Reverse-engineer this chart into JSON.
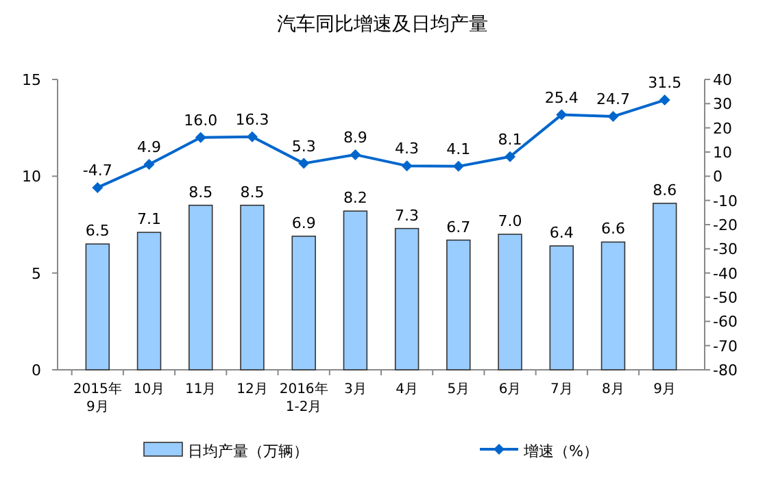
{
  "chart_data": {
    "type": "bar",
    "title": "汽车同比增速及日均产量",
    "categories": [
      "2015年\n9月",
      "10月",
      "11月",
      "12月",
      "2016年\n1-2月",
      "3月",
      "4月",
      "5月",
      "6月",
      "7月",
      "8月",
      "9月"
    ],
    "series": [
      {
        "name": "日均产量（万辆）",
        "color": "#99ccff",
        "values": [
          6.5,
          7.1,
          8.5,
          8.5,
          6.9,
          8.2,
          7.3,
          6.7,
          7.0,
          6.4,
          6.6,
          8.6
        ],
        "value_labels": [
          "6.5",
          "7.1",
          "8.5",
          "8.5",
          "6.9",
          "8.2",
          "7.3",
          "6.7",
          "7.0",
          "6.4",
          "6.6",
          "8.6"
        ]
      },
      {
        "name": "增速（%）",
        "type": "line",
        "axis": "y2",
        "color": "#0066cc",
        "marker": "diamond",
        "values": [
          -4.7,
          4.9,
          16.0,
          16.3,
          5.3,
          8.9,
          4.3,
          4.1,
          8.1,
          25.4,
          24.7,
          31.5
        ],
        "value_labels": [
          "-4.7",
          "4.9",
          "16.0",
          "16.3",
          "5.3",
          "8.9",
          "4.3",
          "4.1",
          "8.1",
          "25.4",
          "24.7",
          "31.5"
        ]
      }
    ],
    "ylim": [
      0,
      15
    ],
    "yticks": [
      0,
      5,
      10,
      15
    ],
    "y2lim": [
      -80,
      40
    ],
    "y2ticks": [
      -80,
      -70,
      -60,
      -50,
      -40,
      -30,
      -20,
      -10,
      0,
      10,
      20,
      30,
      40
    ],
    "legend": "bottom"
  }
}
